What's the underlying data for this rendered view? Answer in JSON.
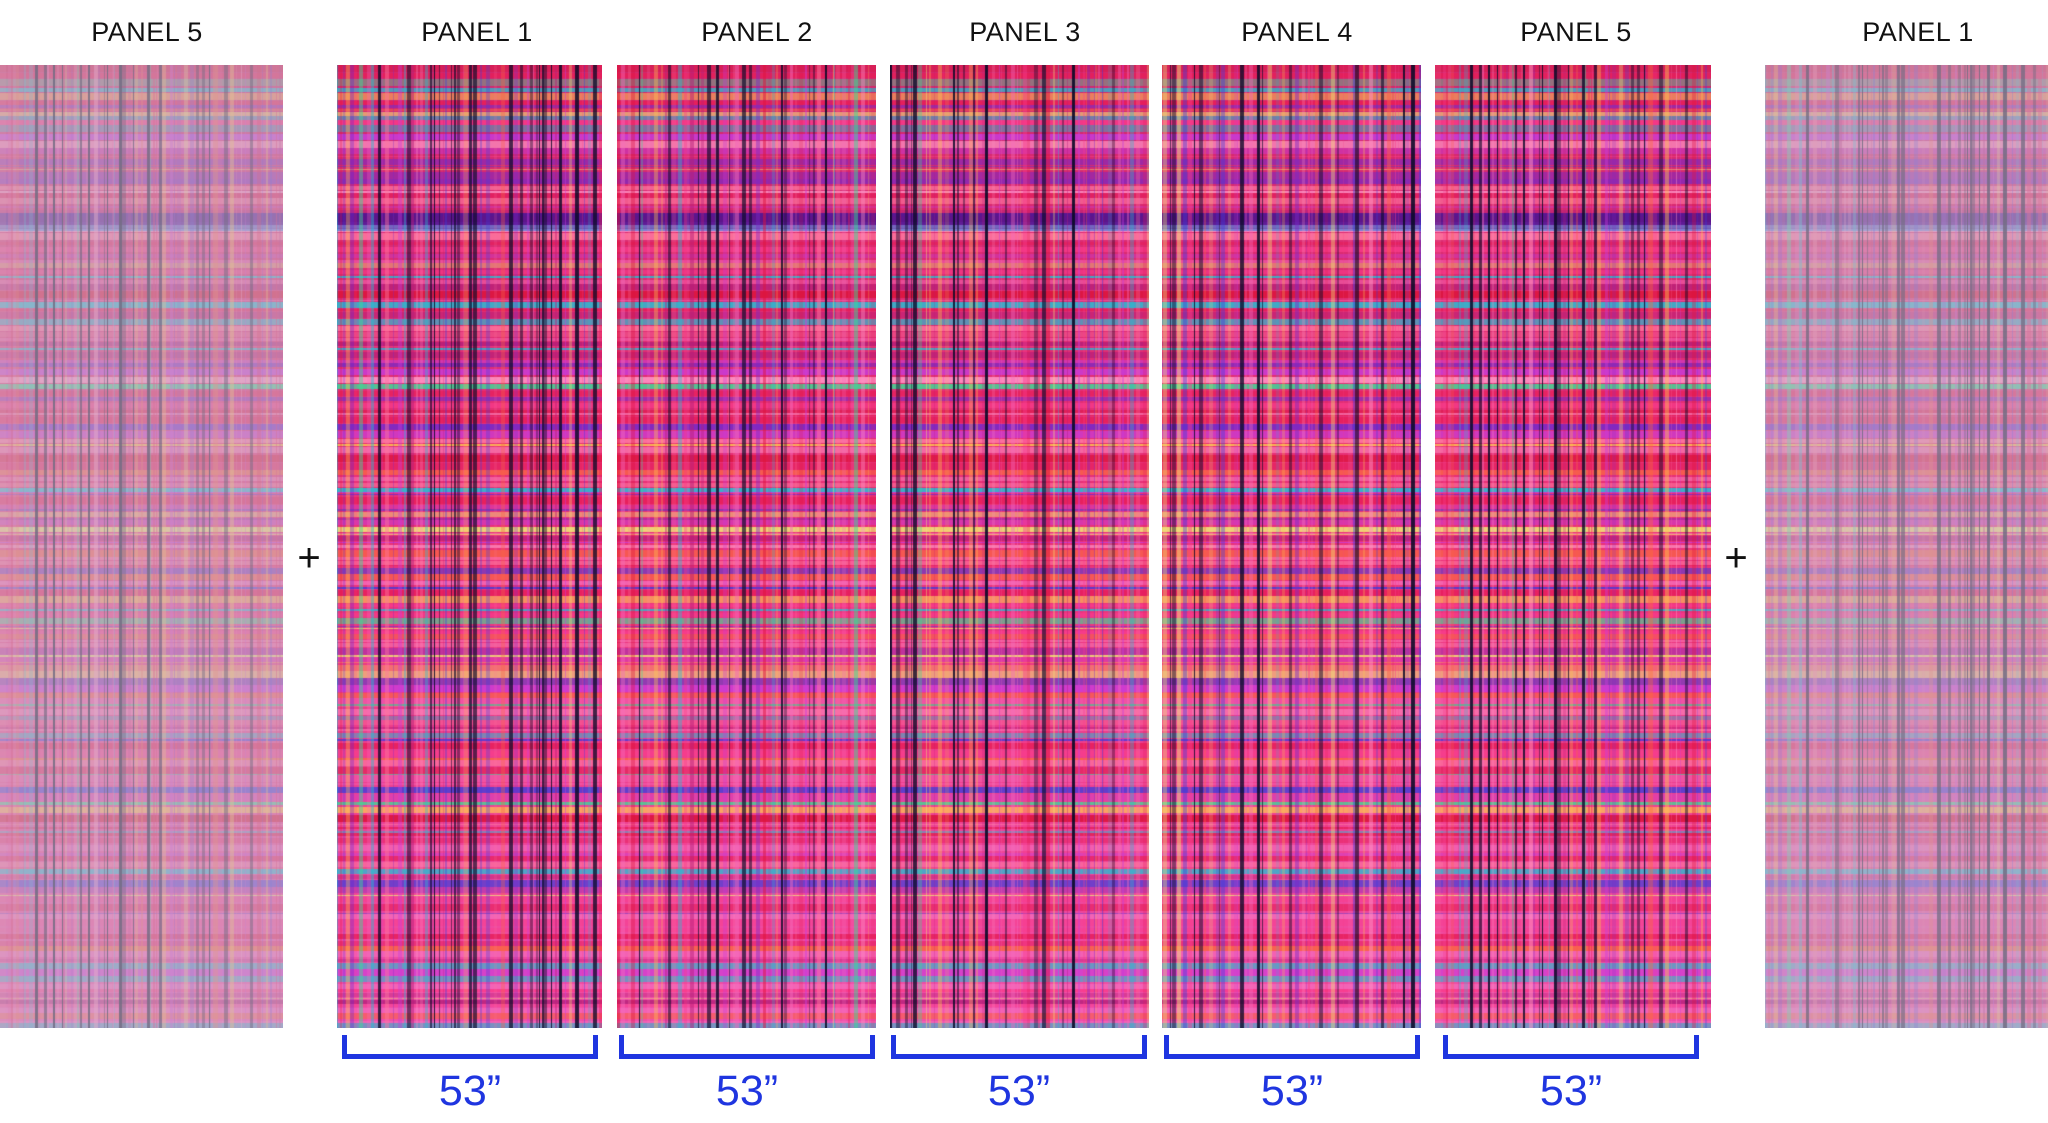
{
  "panels": [
    {
      "label": "PANEL 5",
      "seed": 5,
      "faded": true
    },
    {
      "label": "PANEL 1",
      "seed": 1,
      "faded": false
    },
    {
      "label": "PANEL 2",
      "seed": 2,
      "faded": false
    },
    {
      "label": "PANEL 3",
      "seed": 3,
      "faded": false
    },
    {
      "label": "PANEL 4",
      "seed": 4,
      "faded": false
    },
    {
      "label": "PANEL 5",
      "seed": 5,
      "faded": false
    },
    {
      "label": "PANEL 1",
      "seed": 1,
      "faded": true
    }
  ],
  "plus_sign": "+",
  "panel_width": "53”",
  "colors": {
    "bracket": "#1f35e0",
    "label_text": "#111111",
    "pattern_base": "#e0338a"
  }
}
